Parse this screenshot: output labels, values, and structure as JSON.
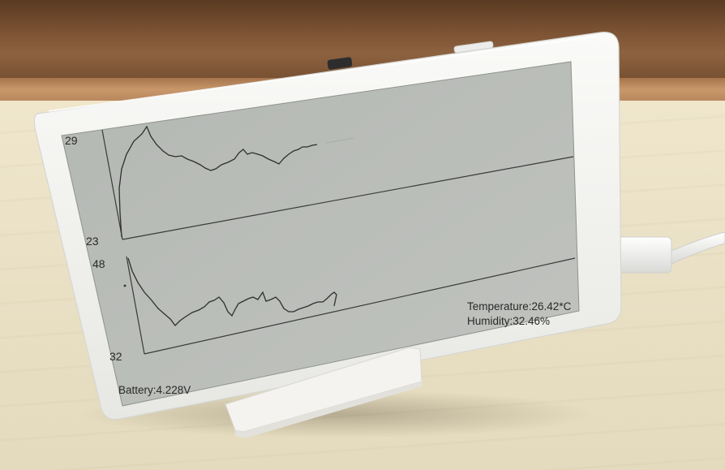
{
  "display": {
    "top_chart": {
      "y_max": "29",
      "y_min": "23"
    },
    "bottom_chart": {
      "y_max": "48",
      "y_min": "32"
    },
    "temperature": "Temperature:26.42*C",
    "humidity": "Humidity:32.46%",
    "battery": "Battery:4.228V"
  },
  "colors": {
    "screen": "#b9bdb8",
    "bezel": "#f3f3f1",
    "ink": "#2a2a2a"
  }
}
